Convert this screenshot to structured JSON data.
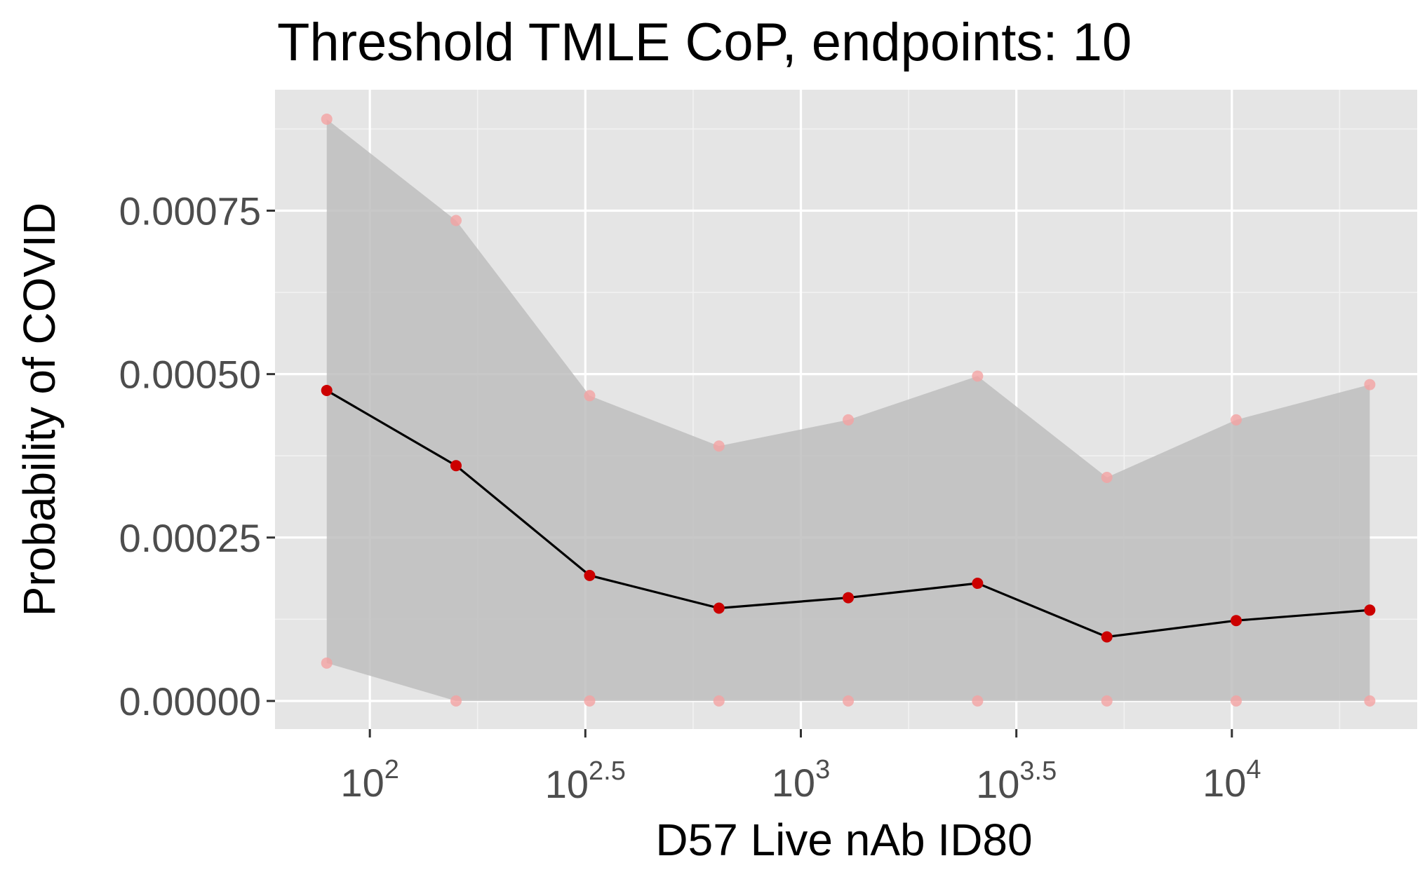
{
  "chart_data": {
    "type": "line",
    "title": "Threshold TMLE CoP, endpoints: 10",
    "xlabel": "D57 Live nAb ID80",
    "ylabel": "Probability of COVID",
    "x_scale": "log10",
    "xlim_log10": [
      1.78,
      4.43
    ],
    "ylim": [
      -4.3e-05,
      0.000935
    ],
    "x_ticks": [
      {
        "log10": 2.0,
        "base": "10",
        "exp": "2"
      },
      {
        "log10": 2.5,
        "base": "10",
        "exp": "2.5"
      },
      {
        "log10": 3.0,
        "base": "10",
        "exp": "3"
      },
      {
        "log10": 3.5,
        "base": "10",
        "exp": "3.5"
      },
      {
        "log10": 4.0,
        "base": "10",
        "exp": "4"
      }
    ],
    "y_ticks": [
      {
        "value": 0.0,
        "label": "0.00000"
      },
      {
        "value": 0.00025,
        "label": "0.00025"
      },
      {
        "value": 0.0005,
        "label": "0.00050"
      },
      {
        "value": 0.00075,
        "label": "0.00075"
      }
    ],
    "grid": true,
    "legend": "none",
    "x_log10": [
      1.9,
      2.2,
      2.51,
      2.81,
      3.11,
      3.41,
      3.71,
      4.01,
      4.32
    ],
    "estimate": [
      0.000475,
      0.00036,
      0.000192,
      0.000142,
      0.000158,
      0.00018,
      9.8e-05,
      0.000123,
      0.000139
    ],
    "ci_lower": [
      5.8e-05,
      0.0,
      0.0,
      0.0,
      0.0,
      0.0,
      0.0,
      0.0,
      0.0
    ],
    "ci_upper": [
      0.00089,
      0.000735,
      0.000467,
      0.00039,
      0.00043,
      0.000497,
      0.000342,
      0.00043,
      0.000484
    ],
    "colors": {
      "panel": "#e5e5e5",
      "grid_major": "#ffffff",
      "grid_minor": "#f2f2f2",
      "ribbon": "#bebebe",
      "line": "#000000",
      "point": "#cc0000",
      "ci_point": "#f4a3a3"
    }
  }
}
